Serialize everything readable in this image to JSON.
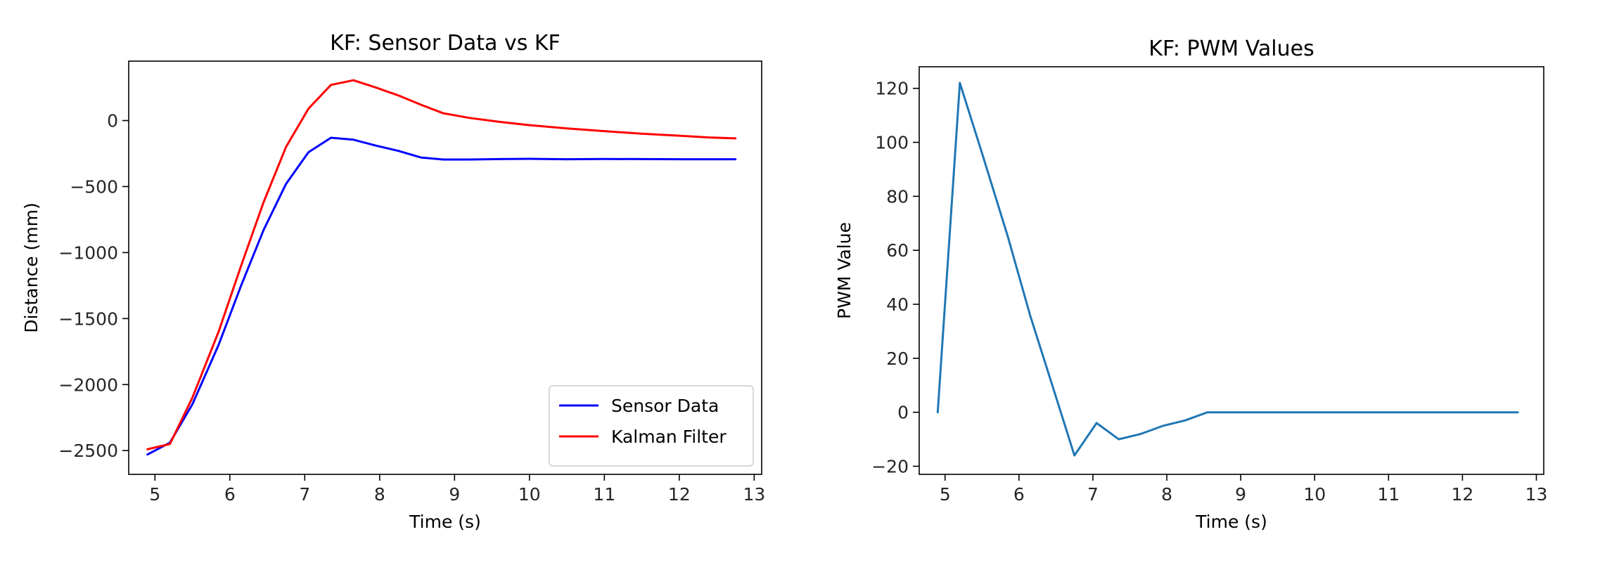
{
  "chart_data": [
    {
      "type": "line",
      "title": "KF: Sensor Data vs KF",
      "xlabel": "Time (s)",
      "ylabel": "Distance (mm)",
      "xlim": [
        4.65,
        13.1
      ],
      "ylim": [
        -2680,
        450
      ],
      "xticks": [
        5,
        6,
        7,
        8,
        9,
        10,
        11,
        12,
        13
      ],
      "yticks": [
        0,
        -500,
        -1000,
        -1500,
        -2000,
        -2500
      ],
      "ytick_labels": [
        "0",
        "−500",
        "−1000",
        "−1500",
        "−2000",
        "−2500"
      ],
      "legend": "lower right",
      "series": [
        {
          "name": "Sensor Data",
          "color": "#0000ff",
          "x": [
            4.9,
            5.2,
            5.5,
            5.85,
            6.15,
            6.45,
            6.75,
            7.05,
            7.35,
            7.65,
            7.95,
            8.25,
            8.55,
            8.85,
            9.2,
            9.6,
            10.0,
            10.5,
            11.0,
            11.5,
            12.0,
            12.4,
            12.75
          ],
          "y": [
            -2530,
            -2440,
            -2150,
            -1700,
            -1250,
            -830,
            -480,
            -240,
            -130,
            -145,
            -190,
            -230,
            -280,
            -295,
            -295,
            -292,
            -290,
            -293,
            -291,
            -292,
            -293,
            -293,
            -293
          ]
        },
        {
          "name": "Kalman Filter",
          "color": "#ff0000",
          "x": [
            4.9,
            5.2,
            5.5,
            5.85,
            6.15,
            6.45,
            6.75,
            7.05,
            7.35,
            7.65,
            7.95,
            8.25,
            8.55,
            8.85,
            9.2,
            9.6,
            10.0,
            10.5,
            11.0,
            11.5,
            12.0,
            12.4,
            12.75
          ],
          "y": [
            -2490,
            -2450,
            -2100,
            -1600,
            -1100,
            -620,
            -200,
            90,
            270,
            305,
            250,
            190,
            120,
            55,
            20,
            -10,
            -35,
            -60,
            -80,
            -100,
            -115,
            -128,
            -135
          ]
        }
      ]
    },
    {
      "type": "line",
      "title": "KF: PWM Values",
      "xlabel": "Time (s)",
      "ylabel": "PWM Value",
      "xlim": [
        4.65,
        13.1
      ],
      "ylim": [
        -23,
        128
      ],
      "xticks": [
        5,
        6,
        7,
        8,
        9,
        10,
        11,
        12,
        13
      ],
      "yticks": [
        120,
        100,
        80,
        60,
        40,
        20,
        0,
        -20
      ],
      "ytick_labels": [
        "120",
        "100",
        "80",
        "60",
        "40",
        "20",
        "0",
        "−20"
      ],
      "series": [
        {
          "color": "#1f77b4",
          "x": [
            4.9,
            5.2,
            5.5,
            5.85,
            6.15,
            6.45,
            6.75,
            7.05,
            7.35,
            7.65,
            7.95,
            8.25,
            8.55,
            8.85,
            9.2,
            9.6,
            10.0,
            10.5,
            11.0,
            11.5,
            12.0,
            12.4,
            12.75
          ],
          "y": [
            0,
            122,
            96,
            65,
            36,
            10,
            -16,
            -4,
            -10,
            -8,
            -5,
            -3,
            0,
            0,
            0,
            0,
            0,
            0,
            0,
            0,
            0,
            0,
            0
          ]
        }
      ]
    }
  ]
}
